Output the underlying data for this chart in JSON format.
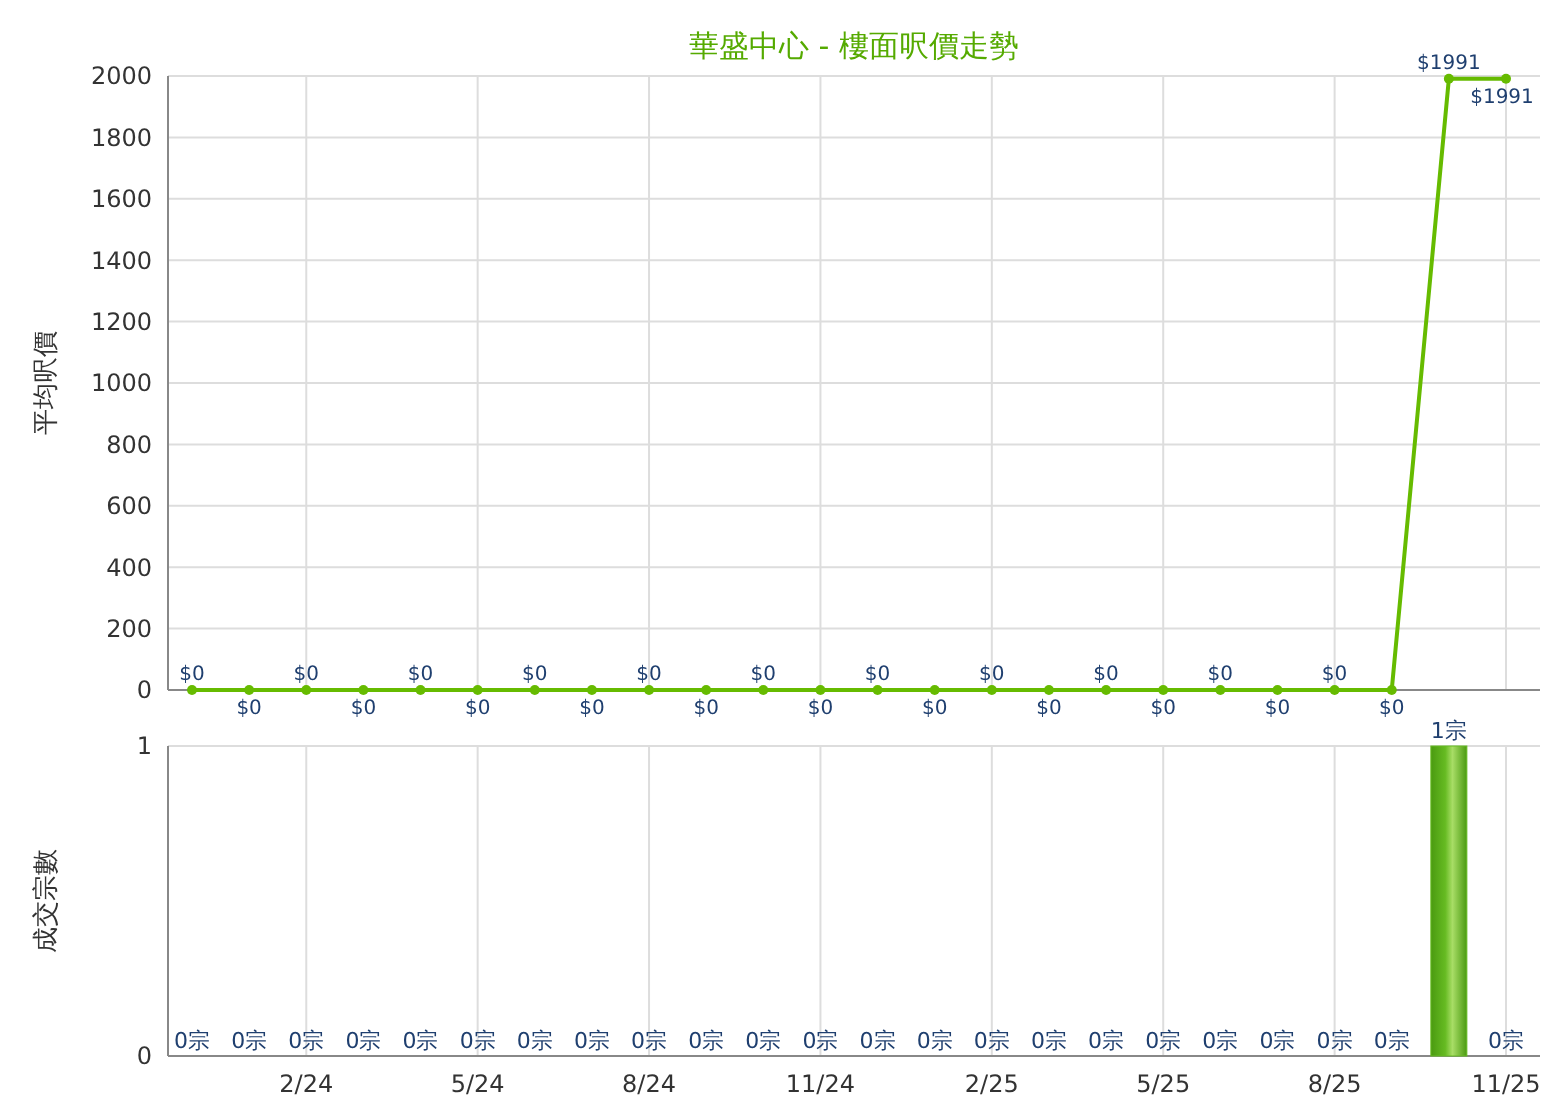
{
  "chart_data": [
    {
      "type": "line",
      "title": "華盛中心 - 樓面呎價走勢",
      "ylabel": "平均呎價",
      "categories": [
        null,
        null,
        null,
        null,
        null,
        null,
        null,
        null,
        null,
        null,
        null,
        null,
        null,
        null,
        null,
        null,
        null,
        null,
        null,
        null,
        null,
        null,
        null,
        null
      ],
      "series": [
        {
          "color": "#66bb00",
          "values": [
            0,
            0,
            0,
            0,
            0,
            0,
            0,
            0,
            0,
            0,
            0,
            0,
            0,
            0,
            0,
            0,
            0,
            0,
            0,
            0,
            0,
            0,
            1991,
            1991
          ],
          "value_labels": [
            "$0",
            "$0",
            "$0",
            "$0",
            "$0",
            "$0",
            "$0",
            "$0",
            "$0",
            "$0",
            "$0",
            "$0",
            "$0",
            "$0",
            "$0",
            "$0",
            "$0",
            "$0",
            "$0",
            "$0",
            "$0",
            "$0",
            "$1991",
            "$1991"
          ]
        }
      ],
      "ylim": [
        0,
        2000
      ],
      "yticks": [
        0,
        200,
        400,
        600,
        800,
        1000,
        1200,
        1400,
        1600,
        1800,
        2000
      ],
      "grid": true,
      "marker": "circle",
      "tick_labels": "y"
    },
    {
      "type": "bar",
      "ylabel": "成交宗數",
      "categories": [
        null,
        null,
        "2/24",
        null,
        null,
        "5/24",
        null,
        null,
        "8/24",
        null,
        null,
        "11/24",
        null,
        null,
        "2/25",
        null,
        null,
        "5/25",
        null,
        null,
        "8/25",
        null,
        null,
        "11/25"
      ],
      "values": [
        0,
        0,
        0,
        0,
        0,
        0,
        0,
        0,
        0,
        0,
        0,
        0,
        0,
        0,
        0,
        0,
        0,
        0,
        0,
        0,
        0,
        0,
        1,
        0
      ],
      "color": "#66bb22",
      "value_labels": [
        "0宗",
        "0宗",
        "0宗",
        "0宗",
        "0宗",
        "0宗",
        "0宗",
        "0宗",
        "0宗",
        "0宗",
        "0宗",
        "0宗",
        "0宗",
        "0宗",
        "0宗",
        "0宗",
        "0宗",
        "0宗",
        "0宗",
        "0宗",
        "0宗",
        "0宗",
        "1宗",
        "0宗"
      ],
      "ylim": [
        0,
        1
      ],
      "yticks": [
        0,
        1
      ],
      "grid": true
    }
  ]
}
